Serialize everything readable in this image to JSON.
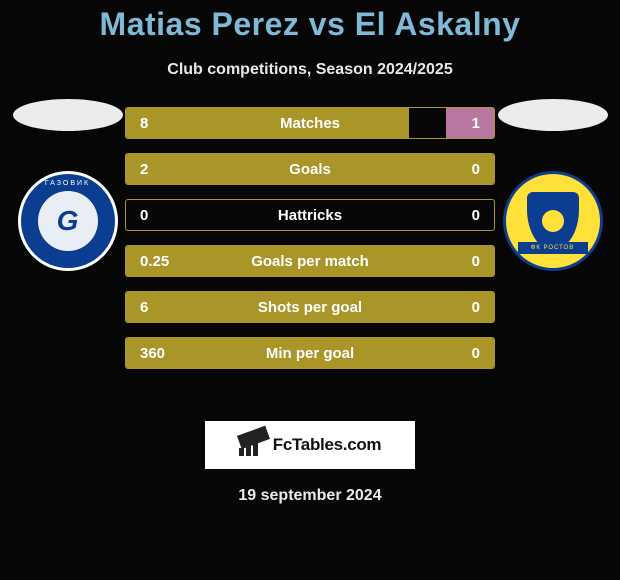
{
  "title": "Matias Perez vs El Askalny",
  "subtitle": "Club competitions, Season 2024/2025",
  "date": "19 september 2024",
  "logo_text": "FcTables.com",
  "colors": {
    "bar_olive_fill": "#a99528",
    "bar_olive_border": "#a99528",
    "bar_magenta_fill": "#b877a1",
    "bar_magenta_border": "#b877a1",
    "bar_text": "#ffffff",
    "background": "#060606",
    "title_color": "#7fb9d8"
  },
  "bars": [
    {
      "label": "Matches",
      "left": "8",
      "right": "1",
      "left_pct": 77,
      "right_pct": 13
    },
    {
      "label": "Goals",
      "left": "2",
      "right": "0",
      "left_pct": 100,
      "right_pct": 0
    },
    {
      "label": "Hattricks",
      "left": "0",
      "right": "0",
      "left_pct": 0,
      "right_pct": 0
    },
    {
      "label": "Goals per match",
      "left": "0.25",
      "right": "0",
      "left_pct": 100,
      "right_pct": 0
    },
    {
      "label": "Shots per goal",
      "left": "6",
      "right": "0",
      "left_pct": 100,
      "right_pct": 0
    },
    {
      "label": "Min per goal",
      "left": "360",
      "right": "0",
      "left_pct": 100,
      "right_pct": 0
    }
  ]
}
